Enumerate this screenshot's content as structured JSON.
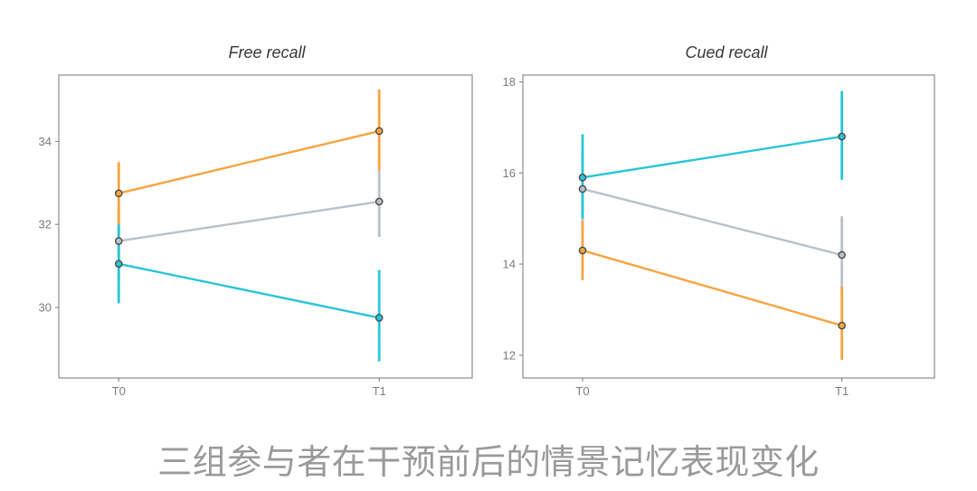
{
  "caption": {
    "text": "三组参与者在干预前后的情景记忆表现变化"
  },
  "colors": {
    "orange_series": "#f7a440",
    "gray_series": "#b9c2c8",
    "cyan_series": "#29c5d6",
    "axis_border": "#8c8c8c",
    "tick_text": "#7c7c7c",
    "marker_outline": "#4a4a4a",
    "caption_text": "#9a9a9a"
  },
  "chart_data": [
    {
      "type": "line",
      "title": "Free recall",
      "categories": [
        "T0",
        "T1"
      ],
      "xlabel": "",
      "ylabel": "",
      "ylim": [
        28.3,
        35.6
      ],
      "yticks": [
        30,
        32,
        34
      ],
      "grid": false,
      "legend": "none",
      "series": [
        {
          "name": "gray-group",
          "color": "#b9c2c8",
          "values": [
            31.6,
            32.55
          ],
          "err_low": [
            30.7,
            31.7
          ],
          "err_high": [
            32.5,
            33.5
          ]
        },
        {
          "name": "orange-group",
          "color": "#f7a440",
          "values": [
            32.75,
            34.25
          ],
          "err_low": [
            32.0,
            33.3
          ],
          "err_high": [
            33.5,
            35.25
          ]
        },
        {
          "name": "cyan-group",
          "color": "#29c5d6",
          "values": [
            31.05,
            29.75
          ],
          "err_low": [
            30.1,
            28.7
          ],
          "err_high": [
            32.0,
            30.9
          ]
        }
      ]
    },
    {
      "type": "line",
      "title": "Cued recall",
      "categories": [
        "T0",
        "T1"
      ],
      "xlabel": "",
      "ylabel": "",
      "ylim": [
        11.5,
        18.15
      ],
      "yticks": [
        12,
        14,
        16,
        18
      ],
      "grid": false,
      "legend": "none",
      "series": [
        {
          "name": "gray-group",
          "color": "#b9c2c8",
          "values": [
            15.65,
            14.2
          ],
          "err_low": [
            14.8,
            13.35
          ],
          "err_high": [
            16.5,
            15.05
          ]
        },
        {
          "name": "orange-group",
          "color": "#f7a440",
          "values": [
            14.3,
            12.65
          ],
          "err_low": [
            13.65,
            11.9
          ],
          "err_high": [
            14.95,
            13.5
          ]
        },
        {
          "name": "cyan-group",
          "color": "#29c5d6",
          "values": [
            15.9,
            16.8
          ],
          "err_low": [
            15.0,
            15.85
          ],
          "err_high": [
            16.85,
            17.8
          ]
        }
      ]
    }
  ]
}
